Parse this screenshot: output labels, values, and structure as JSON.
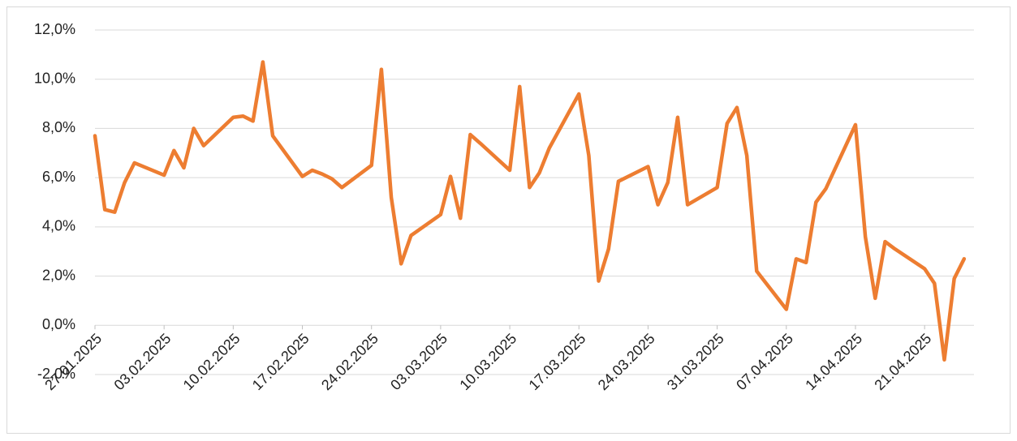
{
  "chart_data": {
    "type": "line",
    "x": [
      "2025-01-27",
      "2025-01-28",
      "2025-01-29",
      "2025-01-30",
      "2025-01-31",
      "2025-02-03",
      "2025-02-04",
      "2025-02-05",
      "2025-02-06",
      "2025-02-07",
      "2025-02-10",
      "2025-02-11",
      "2025-02-12",
      "2025-02-13",
      "2025-02-14",
      "2025-02-17",
      "2025-02-18",
      "2025-02-19",
      "2025-02-20",
      "2025-02-21",
      "2025-02-24",
      "2025-02-25",
      "2025-02-26",
      "2025-02-27",
      "2025-02-28",
      "2025-03-03",
      "2025-03-04",
      "2025-03-05",
      "2025-03-06",
      "2025-03-07",
      "2025-03-10",
      "2025-03-11",
      "2025-03-12",
      "2025-03-13",
      "2025-03-14",
      "2025-03-17",
      "2025-03-18",
      "2025-03-19",
      "2025-03-20",
      "2025-03-21",
      "2025-03-24",
      "2025-03-25",
      "2025-03-26",
      "2025-03-27",
      "2025-03-28",
      "2025-03-31",
      "2025-04-01",
      "2025-04-02",
      "2025-04-03",
      "2025-04-04",
      "2025-04-07",
      "2025-04-08",
      "2025-04-09",
      "2025-04-10",
      "2025-04-11",
      "2025-04-14",
      "2025-04-15",
      "2025-04-16",
      "2025-04-17",
      "2025-04-18",
      "2025-04-21",
      "2025-04-22",
      "2025-04-23",
      "2025-04-24",
      "2025-04-25"
    ],
    "series": [
      {
        "color": "#ED7D31",
        "values": [
          7.7,
          4.7,
          4.6,
          5.8,
          6.6,
          6.1,
          7.1,
          6.4,
          8.0,
          7.3,
          8.45,
          8.5,
          8.3,
          10.7,
          7.7,
          6.05,
          6.3,
          6.15,
          5.95,
          5.6,
          6.5,
          10.4,
          5.2,
          2.5,
          3.65,
          4.5,
          6.05,
          4.35,
          7.75,
          7.4,
          6.3,
          9.7,
          5.6,
          6.2,
          7.2,
          9.4,
          6.9,
          1.8,
          3.1,
          5.85,
          6.45,
          4.9,
          5.8,
          8.45,
          4.9,
          5.6,
          8.2,
          8.85,
          6.9,
          2.2,
          0.65,
          2.7,
          2.55,
          5.0,
          5.55,
          8.15,
          3.6,
          1.1,
          3.4,
          3.1,
          2.3,
          1.7,
          -1.4,
          1.9,
          2.7
        ]
      }
    ],
    "xlim": [
      "2025-01-27",
      "2025-04-26"
    ],
    "xticks": [
      {
        "value": "2025-01-27",
        "label": "27.01.2025"
      },
      {
        "value": "2025-02-03",
        "label": "03.02.2025"
      },
      {
        "value": "2025-02-10",
        "label": "10.02.2025"
      },
      {
        "value": "2025-02-17",
        "label": "17.02.2025"
      },
      {
        "value": "2025-02-24",
        "label": "24.02.2025"
      },
      {
        "value": "2025-03-03",
        "label": "03.03.2025"
      },
      {
        "value": "2025-03-10",
        "label": "10.03.2025"
      },
      {
        "value": "2025-03-17",
        "label": "17.03.2025"
      },
      {
        "value": "2025-03-24",
        "label": "24.03.2025"
      },
      {
        "value": "2025-03-31",
        "label": "31.03.2025"
      },
      {
        "value": "2025-04-07",
        "label": "07.04.2025"
      },
      {
        "value": "2025-04-14",
        "label": "14.04.2025"
      },
      {
        "value": "2025-04-21",
        "label": "21.04.2025"
      }
    ],
    "ylim": [
      -2,
      12
    ],
    "yticks": [
      {
        "value": -2,
        "label": "-2,0%"
      },
      {
        "value": 0,
        "label": "0,0%"
      },
      {
        "value": 2,
        "label": "2,0%"
      },
      {
        "value": 4,
        "label": "4,0%"
      },
      {
        "value": 6,
        "label": "6,0%"
      },
      {
        "value": 8,
        "label": "8,0%"
      },
      {
        "value": 10,
        "label": "10,0%"
      },
      {
        "value": 12,
        "label": "12,0%"
      }
    ],
    "grid": true
  }
}
